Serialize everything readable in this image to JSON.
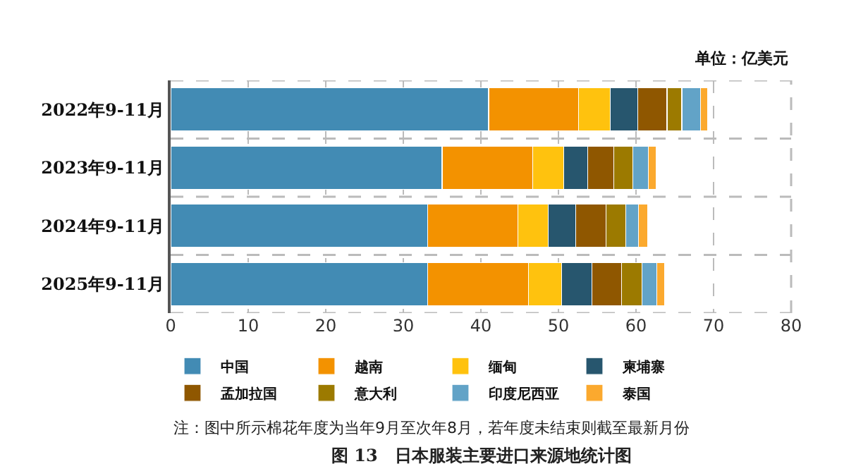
{
  "chart_data": {
    "type": "bar",
    "orientation": "horizontal",
    "stacked": true,
    "categories": [
      "2022年9-11月",
      "2023年9-11月",
      "2024年9-11月",
      "2025年9-11月"
    ],
    "series": [
      {
        "name": "中国",
        "color": "#428bb4",
        "values": [
          41.0,
          35.0,
          33.1,
          33.1
        ]
      },
      {
        "name": "越南",
        "color": "#f39200",
        "values": [
          11.6,
          11.7,
          11.7,
          13.0
        ]
      },
      {
        "name": "缅甸",
        "color": "#ffc20e",
        "values": [
          4.1,
          4.0,
          3.9,
          4.3
        ]
      },
      {
        "name": "柬埔寨",
        "color": "#27566e",
        "values": [
          3.5,
          3.1,
          3.5,
          3.9
        ]
      },
      {
        "name": "孟加拉国",
        "color": "#8f5700",
        "values": [
          3.8,
          3.3,
          3.9,
          3.8
        ]
      },
      {
        "name": "意大利",
        "color": "#9c7a00",
        "values": [
          1.9,
          2.5,
          2.6,
          2.7
        ]
      },
      {
        "name": "印度尼西亚",
        "color": "#62a3c7",
        "values": [
          2.4,
          2.0,
          1.6,
          1.9
        ]
      },
      {
        "name": "泰国",
        "color": "#fba92e",
        "values": [
          0.9,
          1.0,
          1.2,
          1.0
        ]
      }
    ],
    "xlim": [
      0,
      80
    ],
    "xticks": [
      0,
      10,
      20,
      30,
      40,
      50,
      60,
      70,
      80
    ],
    "grid": true,
    "legend": "bottom",
    "annotations": [
      "单位：亿美元",
      "注：图中所示棉花年度为当年9月至次年8月，若年度未结束则截至最新月份",
      "图 13　日本服装主要进口来源地统计图"
    ]
  }
}
